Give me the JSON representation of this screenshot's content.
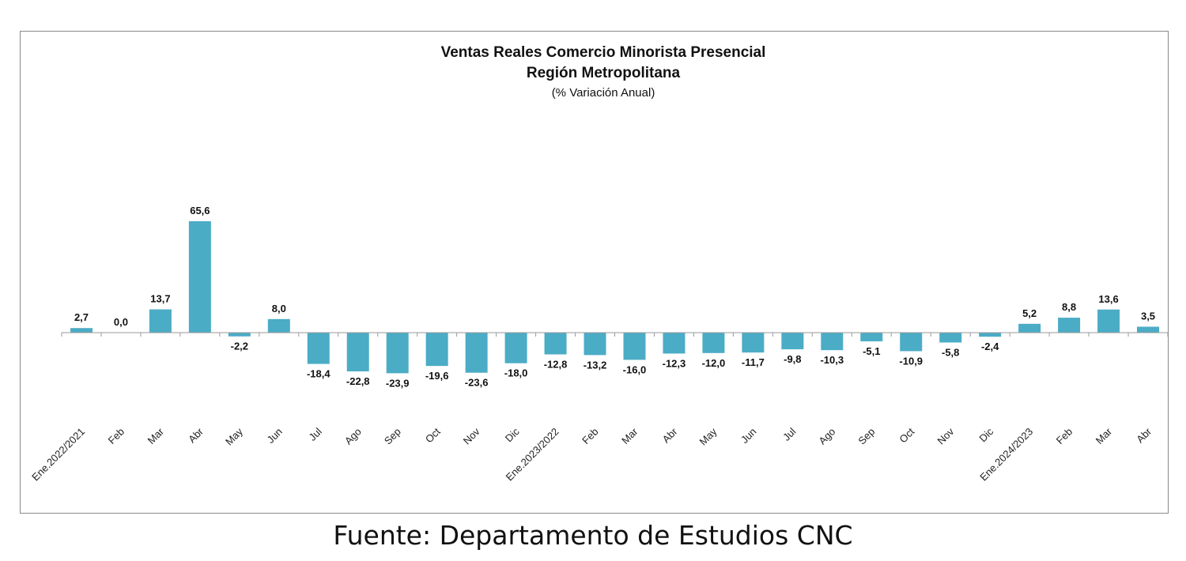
{
  "chart_data": {
    "type": "bar",
    "title": "Ventas Reales Comercio Minorista Presencial",
    "subtitle": "Región Metropolitana",
    "unit_label": "(% Variación Anual)",
    "color": "#4bacc6",
    "categories": [
      "Ene.2022/2021",
      "Feb",
      "Mar",
      "Abr",
      "May",
      "Jun",
      "Jul",
      "Ago",
      "Sep",
      "Oct",
      "Nov",
      "Dic",
      "Ene.2023/2022",
      "Feb",
      "Mar",
      "Abr",
      "May",
      "Jun",
      "Jul",
      "Ago",
      "Sep",
      "Oct",
      "Nov",
      "Dic",
      "Ene.2024/2023",
      "Feb",
      "Mar",
      "Abr"
    ],
    "values": [
      2.7,
      0.0,
      13.7,
      65.6,
      -2.2,
      8.0,
      -18.4,
      -22.8,
      -23.9,
      -19.6,
      -23.6,
      -18.0,
      -12.8,
      -13.2,
      -16.0,
      -12.3,
      -12.0,
      -11.7,
      -9.8,
      -10.3,
      -5.1,
      -10.9,
      -5.8,
      -2.4,
      5.2,
      8.8,
      13.6,
      3.5
    ],
    "value_labels": [
      "2,7",
      "0,0",
      "13,7",
      "65,6",
      "-2,2",
      "8,0",
      "-18,4",
      "-22,8",
      "-23,9",
      "-19,6",
      "-23,6",
      "-18,0",
      "-12,8",
      "-13,2",
      "-16,0",
      "-12,3",
      "-12,0",
      "-11,7",
      "-9,8",
      "-10,3",
      "-5,1",
      "-10,9",
      "-5,8",
      "-2,4",
      "5,2",
      "8,8",
      "13,6",
      "3,5"
    ],
    "grid": false,
    "legend": "none"
  },
  "source": "Fuente: Departamento de Estudios CNC"
}
